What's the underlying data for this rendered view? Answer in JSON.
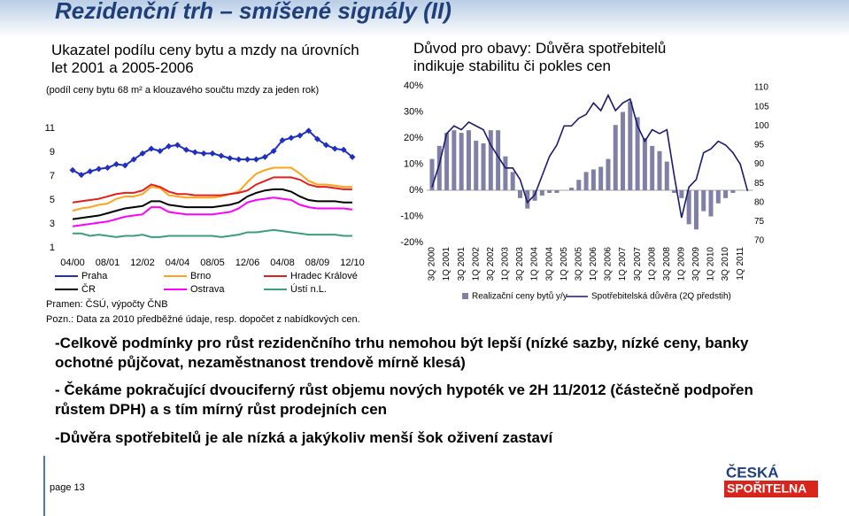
{
  "title": "Rezidenční trh – smíšené signály (II)",
  "chart_data": [
    {
      "type": "line",
      "title": "Ukazatel podílu ceny bytu a mzdy na úrovních let 2001 a 2005-2006",
      "subtitle": "(podíl ceny bytu 68 m² a klouzavého součtu mzdy za jeden rok)",
      "source": "Pramen: ČSÚ, výpočty ČNB",
      "note": "Pozn.: Data za 2010 předběžné údaje, resp. dopočet z nabídkových cen.",
      "categories": [
        "04/00",
        null,
        null,
        null,
        "08/01",
        null,
        null,
        null,
        "12/02",
        null,
        null,
        null,
        "04/04",
        null,
        null,
        null,
        "08/05",
        null,
        null,
        null,
        "12/06",
        null,
        null,
        null,
        "04/08",
        null,
        null,
        null,
        "08/09",
        null,
        null,
        null,
        "12/10"
      ],
      "series": [
        {
          "name": "Praha",
          "color": "#1f2fbf",
          "marker": "diamond",
          "values": [
            7.5,
            7.1,
            7.4,
            7.6,
            7.7,
            8.0,
            7.9,
            8.4,
            8.9,
            9.3,
            9.1,
            9.5,
            9.6,
            9.2,
            9.0,
            8.9,
            8.9,
            8.7,
            8.5,
            8.4,
            8.4,
            8.4,
            8.6,
            9.1,
            10.0,
            10.2,
            10.4,
            10.8,
            10.1,
            9.6,
            9.3,
            9.2,
            8.6
          ]
        },
        {
          "name": "Brno",
          "color": "#ffa31a",
          "values": [
            4.1,
            4.3,
            4.4,
            4.6,
            4.7,
            5.1,
            5.3,
            5.3,
            5.5,
            6.1,
            6.0,
            5.4,
            5.3,
            5.2,
            5.2,
            5.2,
            5.2,
            5.3,
            5.5,
            5.7,
            6.5,
            7.2,
            7.5,
            7.7,
            7.7,
            7.7,
            7.2,
            6.6,
            6.3,
            6.3,
            6.2,
            6.1,
            6.1
          ]
        },
        {
          "name": "Hradec Králové",
          "color": "#e3201c",
          "values": [
            4.8,
            4.9,
            5.0,
            5.1,
            5.3,
            5.5,
            5.6,
            5.6,
            5.8,
            6.3,
            6.1,
            5.7,
            5.5,
            5.5,
            5.4,
            5.4,
            5.4,
            5.4,
            5.5,
            5.6,
            5.8,
            6.3,
            6.6,
            6.9,
            6.9,
            6.9,
            6.7,
            6.3,
            6.1,
            6.1,
            6.0,
            5.9,
            5.9
          ]
        },
        {
          "name": "ČR",
          "color": "#000000",
          "values": [
            3.4,
            3.5,
            3.6,
            3.7,
            3.9,
            4.1,
            4.3,
            4.4,
            4.5,
            4.9,
            4.9,
            4.6,
            4.5,
            4.4,
            4.4,
            4.4,
            4.4,
            4.5,
            4.6,
            4.8,
            5.3,
            5.6,
            5.8,
            5.9,
            5.9,
            5.7,
            5.3,
            5.0,
            4.9,
            4.9,
            4.9,
            4.8,
            4.8
          ]
        },
        {
          "name": "Ostrava",
          "color": "#ff00ff",
          "values": [
            2.8,
            2.9,
            3.0,
            3.1,
            3.2,
            3.4,
            3.6,
            3.7,
            3.8,
            4.4,
            4.4,
            4.0,
            3.9,
            3.8,
            3.8,
            3.8,
            3.8,
            3.9,
            4.0,
            4.3,
            4.8,
            5.0,
            5.1,
            5.2,
            5.1,
            5.0,
            4.6,
            4.4,
            4.3,
            4.3,
            4.3,
            4.3,
            4.2
          ]
        },
        {
          "name": "Ústí n.L.",
          "color": "#3c9c7c",
          "values": [
            2.2,
            2.2,
            2.0,
            2.1,
            2.0,
            1.9,
            2.0,
            2.0,
            2.1,
            1.9,
            1.9,
            2.0,
            2.0,
            2.0,
            2.0,
            2.0,
            2.0,
            1.9,
            2.0,
            2.1,
            2.3,
            2.3,
            2.4,
            2.5,
            2.4,
            2.3,
            2.2,
            2.1,
            2.1,
            2.1,
            2.1,
            2.0,
            2.0
          ]
        }
      ],
      "ylim": [
        1,
        11
      ],
      "yticks": [
        1,
        3,
        5,
        7,
        9,
        11
      ],
      "legend": "bottom"
    },
    {
      "type": "combo",
      "title": "Důvod pro obavy: Důvěra spotřebitelů indikuje stabilitu či pokles cen",
      "categories": [
        "3Q 2000",
        null,
        "1Q 2001",
        null,
        "3Q 2001",
        null,
        "1Q 2002",
        null,
        "3Q 2002",
        null,
        "1Q 2003",
        null,
        "3Q 2003",
        null,
        "1Q 2004",
        null,
        "3Q 2004",
        null,
        "1Q 2005",
        null,
        "3Q 2005",
        null,
        "1Q 2006",
        null,
        "3Q 2006",
        null,
        "1Q 2007",
        null,
        "3Q 2007",
        null,
        "1Q 2008",
        null,
        "3Q 2008",
        null,
        "1Q 2009",
        null,
        "3Q 2009",
        null,
        "1Q 2010",
        null,
        "3Q 2010",
        null,
        "1Q 2011",
        null
      ],
      "series": [
        {
          "name": "Realizační ceny bytů y/y",
          "color": "#8080a6",
          "type": "bar",
          "values": [
            12,
            17,
            22,
            23,
            22,
            23,
            19,
            18,
            23,
            23,
            13,
            7,
            -3,
            -7,
            -4,
            -2,
            -1,
            -1,
            0,
            1,
            4,
            7,
            8,
            9,
            12,
            25,
            30,
            34,
            28,
            20,
            17,
            15,
            11,
            -1,
            -3,
            -13,
            -15,
            -8,
            -10,
            -5,
            -3,
            -1,
            0,
            0
          ]
        },
        {
          "name": "Spotřebitelská důvěra (2Q předstih)",
          "color": "#1a1a70",
          "type": "line",
          "axis": "y2",
          "values": [
            84,
            90,
            98,
            100,
            99,
            101,
            100,
            99,
            95,
            92,
            89,
            89,
            86,
            80,
            82,
            87,
            92,
            95,
            100,
            100,
            102,
            103,
            106,
            104,
            108,
            104,
            106,
            107,
            100,
            96,
            99,
            98,
            99,
            87,
            76,
            84,
            86,
            93,
            94,
            96,
            95,
            93,
            90,
            83
          ]
        }
      ],
      "ylim": [
        -20,
        40
      ],
      "yticks": [
        {
          "value": -20,
          "label": "-20%"
        },
        {
          "value": -10,
          "label": "-10%"
        },
        {
          "value": 0,
          "label": "0%"
        },
        {
          "value": 10,
          "label": "10%"
        },
        {
          "value": 20,
          "label": "20%"
        },
        {
          "value": 30,
          "label": "30%"
        },
        {
          "value": 40,
          "label": "40%"
        }
      ],
      "y2lim": [
        70,
        110
      ],
      "y2ticks": [
        70,
        75,
        80,
        85,
        90,
        95,
        100,
        105,
        110
      ],
      "legend": "bottom"
    }
  ],
  "bullets": [
    "-Celkově podmínky pro růst rezidenčního trhu nemohou být lepší (nízké sazby, nízké ceny, banky ochotné půjčovat, nezaměstnanost trendově mírně klesá)",
    "- Čekáme pokračující dvouciferný růst objemu nových hypoték ve 2H 11/2012 (částečně podpořen růstem DPH) a s tím mírný růst prodejních cen",
    "-Důvěra spotřebitelů je ale nízká a jakýkoliv menší šok oživení zastaví"
  ],
  "footer": {
    "page": "page 13",
    "logo": [
      "ČESKÁ",
      "SPOŘITELNA"
    ]
  }
}
